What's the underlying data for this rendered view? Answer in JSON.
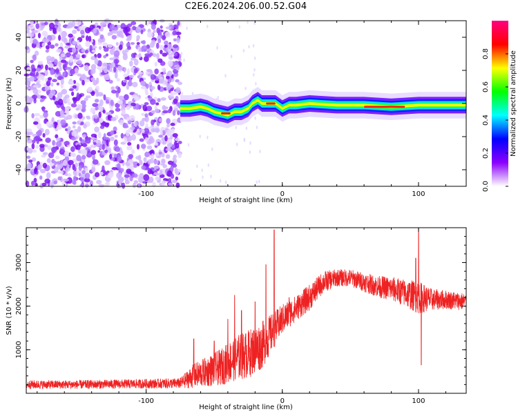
{
  "title": "C2E6.2024.206.00.52.G04",
  "chart_data": [
    {
      "type": "heatmap",
      "name": "spectrogram",
      "xlabel": "Height of straight line (km)",
      "ylabel": "Frequency (Hz)",
      "xlim": [
        -188,
        135
      ],
      "ylim": [
        -50,
        50
      ],
      "xticks": [
        -100,
        0,
        100
      ],
      "xtick_labels": [
        "-100",
        "0",
        "100"
      ],
      "yticks": [
        -40,
        -20,
        0,
        20,
        40
      ],
      "ytick_labels": [
        "-40",
        "-20",
        "0",
        "20",
        "40"
      ],
      "colorbar": {
        "label": "Normalized spectral amplitude",
        "range": [
          0.0,
          1.0
        ],
        "ticks": [
          0.0,
          0.2,
          0.4,
          0.6,
          0.8
        ],
        "tick_labels": [
          "0.0",
          "0.2",
          "0.4",
          "0.6",
          "0.8"
        ],
        "colormap": [
          "#ffffff",
          "#8b00ff",
          "#0000ff",
          "#00ffff",
          "#00ff00",
          "#ffff00",
          "#ff0000",
          "#ff0080"
        ]
      },
      "noise_region": {
        "x": [
          -188,
          -75
        ],
        "freq": [
          -50,
          50
        ],
        "amplitude": 0.2
      },
      "signal_ridge": {
        "x": [
          -75,
          -68,
          -60,
          -55,
          -50,
          -45,
          -40,
          -35,
          -30,
          -25,
          -22,
          -18,
          -15,
          -10,
          -5,
          0,
          5,
          10,
          20,
          40,
          60,
          80,
          100,
          120,
          135
        ],
        "freq": [
          -3,
          -3,
          -2,
          -3,
          -5,
          -6,
          -7,
          -5,
          -5,
          -3,
          0,
          2,
          0,
          0,
          0,
          -3,
          -1,
          -1,
          0,
          -1,
          -1,
          -2,
          -1,
          -1,
          -1
        ]
      }
    },
    {
      "type": "line",
      "name": "snr",
      "xlabel": "Height of straight line (km)",
      "ylabel": "SNR (10 * v/v)",
      "xlim": [
        -188,
        135
      ],
      "ylim": [
        0,
        3800
      ],
      "xticks": [
        -100,
        0,
        100
      ],
      "xtick_labels": [
        "-100",
        "0",
        "100"
      ],
      "yticks": [
        1000,
        2000,
        3000
      ],
      "ytick_labels": [
        "1000",
        "2000",
        "3000"
      ],
      "color": "#ee2222",
      "envelope": {
        "x": [
          -188,
          -150,
          -100,
          -75,
          -65,
          -55,
          -45,
          -35,
          -25,
          -15,
          -10,
          -5,
          0,
          10,
          20,
          30,
          40,
          50,
          60,
          70,
          80,
          90,
          100,
          110,
          120,
          135
        ],
        "mean": [
          200,
          200,
          220,
          230,
          400,
          500,
          600,
          800,
          900,
          1100,
          1300,
          1500,
          1700,
          1950,
          2200,
          2550,
          2650,
          2650,
          2550,
          2450,
          2400,
          2300,
          2200,
          2150,
          2150,
          2100
        ],
        "spread": [
          100,
          100,
          110,
          120,
          280,
          350,
          420,
          520,
          560,
          550,
          480,
          400,
          350,
          300,
          300,
          250,
          200,
          200,
          220,
          250,
          280,
          320,
          380,
          250,
          220,
          200
        ]
      },
      "spikes": [
        [
          -65,
          1250
        ],
        [
          -50,
          1200
        ],
        [
          -40,
          1700
        ],
        [
          -35,
          2250
        ],
        [
          -30,
          1900
        ],
        [
          -20,
          2100
        ],
        [
          -12,
          2950
        ],
        [
          -6,
          3750
        ],
        [
          5,
          2200
        ],
        [
          100,
          3800
        ],
        [
          102,
          650
        ],
        [
          98,
          3100
        ]
      ]
    }
  ]
}
